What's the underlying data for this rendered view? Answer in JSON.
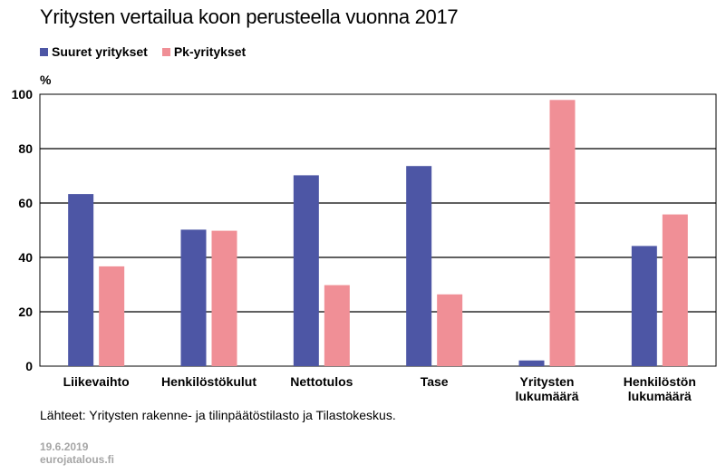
{
  "colors": {
    "large": "#4d56a5",
    "sme": "#f08f96"
  },
  "chart_data": {
    "type": "bar",
    "title": "Yritysten  vertailua  koon perusteella vuonna 2017",
    "ylabel": "%",
    "ylim": [
      0,
      100
    ],
    "yticks": [
      "0",
      "20",
      "40",
      "60",
      "80",
      "100"
    ],
    "grid": true,
    "legend_position": "top-left",
    "categories": [
      [
        "Liikevaihto"
      ],
      [
        "Henkilöstökulut"
      ],
      [
        "Nettotulos"
      ],
      [
        "Tase"
      ],
      [
        "Yritysten",
        "lukumäärä"
      ],
      [
        "Henkilöstön",
        "lukumäärä"
      ]
    ],
    "series": [
      {
        "name": "Suuret yritykset",
        "values": [
          63.3,
          50.2,
          70.2,
          73.6,
          2.1,
          44.2
        ]
      },
      {
        "name": "Pk-yritykset",
        "values": [
          36.7,
          49.8,
          29.8,
          26.4,
          97.9,
          55.8
        ]
      }
    ]
  },
  "footer": {
    "source": "Lähteet: Yritysten rakenne- ja tilinpäätöstilasto ja Tilastokeskus.",
    "date": "19.6.2019",
    "site": "eurojatalous.fi"
  }
}
